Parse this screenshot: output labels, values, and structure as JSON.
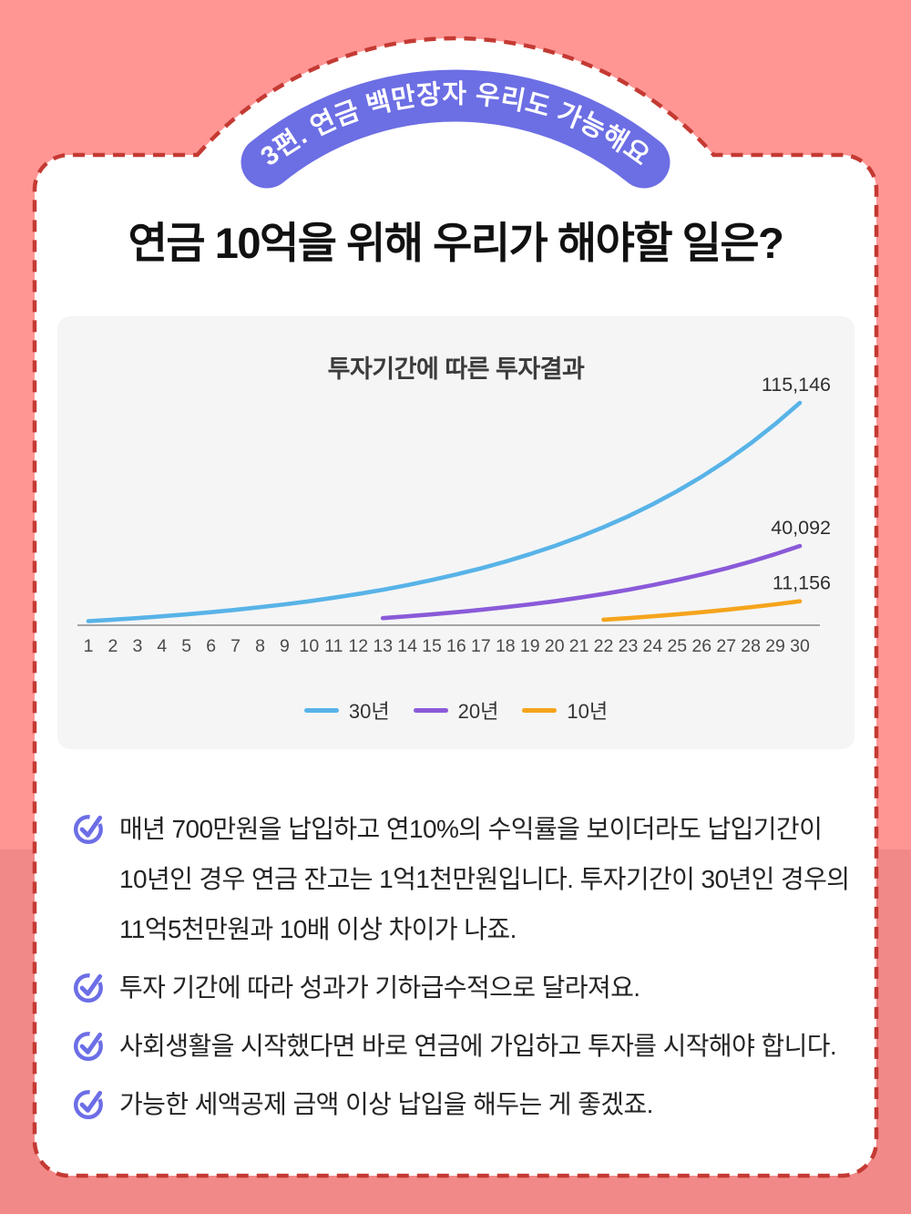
{
  "badge": {
    "text": "3편. 연금 백만장자 우리도 가능해요"
  },
  "title": "연금 10억을 위해 우리가 해야할 일은?",
  "chart_data": {
    "type": "line",
    "title": "투자기간에 따른 투자결과",
    "xlabel": "",
    "ylabel": "",
    "x_ticks": [
      1,
      2,
      3,
      4,
      5,
      6,
      7,
      8,
      9,
      10,
      11,
      12,
      13,
      14,
      15,
      16,
      17,
      18,
      19,
      20,
      21,
      22,
      23,
      24,
      25,
      26,
      27,
      28,
      29,
      30
    ],
    "xlim": [
      1,
      30
    ],
    "ylim": [
      0,
      120000
    ],
    "grid": false,
    "legend_position": "bottom",
    "series": [
      {
        "name": "30년",
        "color": "#58b3e7",
        "start_x": 1,
        "end_label": "115,146",
        "values": [
          700,
          1470,
          2317,
          3249,
          4274,
          5401,
          6641,
          8005,
          9506,
          11156,
          12972,
          14969,
          17166,
          19583,
          22241,
          25165,
          28381,
          31919,
          35811,
          40092,
          44802,
          49982,
          55680,
          61948,
          68843,
          76427,
          84770,
          93947,
          104042,
          115146
        ]
      },
      {
        "name": "20년",
        "color": "#8a5ad8",
        "start_x": 13,
        "end_label": "40,092",
        "values": [
          2317,
          3249,
          4274,
          5401,
          6641,
          8005,
          9506,
          11156,
          12972,
          14969,
          17166,
          19583,
          22241,
          25165,
          28381,
          31919,
          35811,
          40092
        ]
      },
      {
        "name": "10년",
        "color": "#f5a41c",
        "start_x": 22,
        "end_label": "11,156",
        "values": [
          1470,
          2317,
          3249,
          4274,
          5401,
          6641,
          8005,
          9506,
          11156
        ]
      }
    ]
  },
  "bullets": [
    {
      "text": "매년 700만원을 납입하고 연10%의 수익률을 보이더라도 납입기간이 10년인 경우 연금 잔고는 1억1천만원입니다. 투자기간이 30년인 경우의 11억5천만원과 10배 이상 차이가 나죠."
    },
    {
      "text": "투자 기간에 따라 성과가 기하급수적으로 달라져요."
    },
    {
      "text": "사회생활을 시작했다면 바로 연금에 가입하고 투자를 시작해야 합니다."
    },
    {
      "text": "가능한 세액공제 금액 이상 납입을 해두는 게 좋겠죠."
    }
  ],
  "colors": {
    "background_top": "#ff9694",
    "background_bottom": "#f28989",
    "dashed_border": "#c43a33",
    "badge": "#6c6ee4",
    "check_icon": "#6c6ee6",
    "panel": "#f5f5f6",
    "axis": "#8a8a8a",
    "tick_text": "#4a4a4a",
    "value_label_text": "#2f2f2f"
  }
}
